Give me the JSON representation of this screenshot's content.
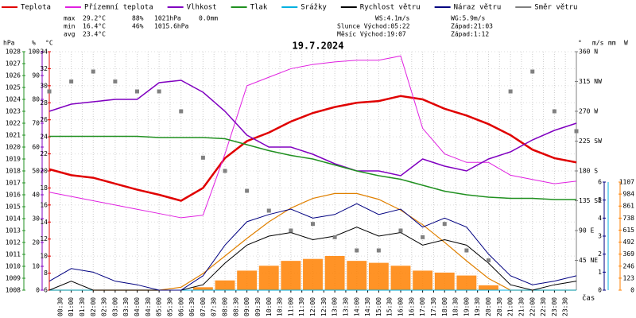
{
  "chart_data": {
    "type": "line",
    "title": "19.7.2024",
    "x_label": "čas",
    "x": [
      0,
      1,
      2,
      3,
      4,
      5,
      6,
      7,
      8,
      9,
      10,
      11,
      12,
      13,
      14,
      15,
      16,
      17,
      18,
      19,
      20,
      21,
      22,
      23,
      24
    ],
    "xlim": [
      0,
      24
    ],
    "xticks": [
      {
        "value": 0.5,
        "label": "00:30"
      },
      {
        "value": 1,
        "label": "01:00"
      },
      {
        "value": 1.5,
        "label": "01:30"
      },
      {
        "value": 2,
        "label": "02:00"
      },
      {
        "value": 2.5,
        "label": "02:30"
      },
      {
        "value": 3,
        "label": "03:00"
      },
      {
        "value": 3.5,
        "label": "03:30"
      },
      {
        "value": 4,
        "label": "04:00"
      },
      {
        "value": 4.5,
        "label": "04:30"
      },
      {
        "value": 5,
        "label": "05:00"
      },
      {
        "value": 5.5,
        "label": "05:30"
      },
      {
        "value": 6,
        "label": "06:00"
      },
      {
        "value": 6.5,
        "label": "06:30"
      },
      {
        "value": 7,
        "label": "07:00"
      },
      {
        "value": 7.5,
        "label": "07:30"
      },
      {
        "value": 8,
        "label": "08:00"
      },
      {
        "value": 8.5,
        "label": "08:30"
      },
      {
        "value": 9,
        "label": "09:00"
      },
      {
        "value": 9.5,
        "label": "09:30"
      },
      {
        "value": 10,
        "label": "10:00"
      },
      {
        "value": 10.5,
        "label": "10:30"
      },
      {
        "value": 11,
        "label": "11:00"
      },
      {
        "value": 11.5,
        "label": "11:30"
      },
      {
        "value": 12,
        "label": "12:00"
      },
      {
        "value": 12.5,
        "label": "12:30"
      },
      {
        "value": 13,
        "label": "13:00"
      },
      {
        "value": 13.5,
        "label": "13:30"
      },
      {
        "value": 14,
        "label": "14:00"
      },
      {
        "value": 14.5,
        "label": "14:30"
      },
      {
        "value": 15,
        "label": "15:00"
      },
      {
        "value": 15.5,
        "label": "15:30"
      },
      {
        "value": 16,
        "label": "16:00"
      },
      {
        "value": 16.5,
        "label": "16:30"
      },
      {
        "value": 17,
        "label": "17:00"
      },
      {
        "value": 17.5,
        "label": "17:30"
      },
      {
        "value": 18,
        "label": "18:00"
      },
      {
        "value": 18.5,
        "label": "18:30"
      },
      {
        "value": 19,
        "label": "19:00"
      },
      {
        "value": 19.5,
        "label": "19:30"
      },
      {
        "value": 20,
        "label": "20:00"
      },
      {
        "value": 20.5,
        "label": "20:30"
      },
      {
        "value": 21,
        "label": "21:00"
      },
      {
        "value": 21.5,
        "label": "21:30"
      },
      {
        "value": 22,
        "label": "22:00"
      },
      {
        "value": 22.5,
        "label": "22:30"
      },
      {
        "value": 23,
        "label": "23:00"
      },
      {
        "value": 23.5,
        "label": "23:30"
      }
    ],
    "grid": true,
    "axes": {
      "pressure": {
        "label": "hPa",
        "color": "#209020",
        "ylim": [
          1008,
          1028
        ],
        "yticks": [
          1008,
          1009,
          1010,
          1011,
          1012,
          1013,
          1014,
          1015,
          1016,
          1017,
          1018,
          1019,
          1020,
          1021,
          1022,
          1023,
          1024,
          1025,
          1026,
          1027,
          1028
        ]
      },
      "humidity": {
        "label": "%",
        "color": "#8000c0",
        "ylim": [
          0,
          100
        ],
        "yticks": [
          0,
          10,
          20,
          30,
          40,
          50,
          60,
          70,
          80,
          90,
          100
        ]
      },
      "temp": {
        "label": "°C",
        "color": "#e00000",
        "ylim": [
          6,
          34
        ],
        "yticks": [
          6,
          8,
          10,
          12,
          14,
          16,
          18,
          20,
          22,
          24,
          26,
          28,
          30,
          32,
          34
        ]
      },
      "direction": {
        "label": "°",
        "color": "#808080",
        "ylim": [
          0,
          360
        ],
        "yticks": [
          {
            "value": 45,
            "label": "45 NE"
          },
          {
            "value": 90,
            "label": "90 E"
          },
          {
            "value": 135,
            "label": "135 SE"
          },
          {
            "value": 180,
            "label": "180 S"
          },
          {
            "value": 225,
            "label": "225 SW"
          },
          {
            "value": 270,
            "label": "270 W"
          },
          {
            "value": 315,
            "label": "315 NW"
          },
          {
            "value": 360,
            "label": "360 N"
          }
        ]
      },
      "wind": {
        "label": "m/s",
        "color": "#000080",
        "ylim": [
          0,
          6
        ],
        "yticks": [
          0,
          1,
          2,
          3,
          4,
          5,
          6
        ]
      },
      "rain": {
        "label": "mm",
        "color": "#00b0e0",
        "ylim": [
          0,
          1
        ],
        "yticks": []
      },
      "radiation": {
        "label": "W",
        "color": "#ff8000",
        "ylim": [
          0,
          1107
        ],
        "yticks": [
          0,
          123,
          246,
          369,
          492,
          615,
          738,
          861,
          984,
          1107
        ]
      }
    },
    "radiation": {
      "color": "#ff8000",
      "values": [
        0,
        0,
        0,
        0,
        0,
        0,
        0,
        30,
        100,
        200,
        250,
        300,
        320,
        350,
        300,
        280,
        250,
        200,
        180,
        150,
        50,
        0,
        0,
        0,
        0
      ]
    },
    "clear_sky": {
      "color": "#e08000",
      "values": [
        0,
        0,
        0,
        0,
        0,
        0,
        30,
        170,
        350,
        530,
        700,
        840,
        940,
        990,
        990,
        930,
        820,
        670,
        490,
        300,
        120,
        0,
        0,
        0,
        0
      ]
    },
    "series": [
      {
        "name": "Teplota",
        "color": "#e00000",
        "axis": "temp",
        "values": [
          20.2,
          19.5,
          19.2,
          18.5,
          17.8,
          17.2,
          16.5,
          18,
          21.5,
          23.5,
          24.5,
          25.8,
          26.8,
          27.5,
          28,
          28.2,
          28.8,
          28.4,
          27.3,
          26.5,
          25.5,
          24.2,
          22.5,
          21.5,
          21
        ]
      },
      {
        "name": "Přízemní teplota",
        "color": "#e020e0",
        "axis": "temp",
        "values": [
          17.5,
          17,
          16.5,
          16,
          15.5,
          15,
          14.5,
          14.8,
          22,
          30,
          31,
          32,
          32.5,
          32.8,
          33,
          33,
          33.5,
          25,
          22,
          21,
          21,
          19.5,
          19,
          18.5,
          18.8
        ]
      },
      {
        "name": "Vlhkost",
        "color": "#8000c0",
        "axis": "humidity",
        "values": [
          75,
          78,
          79,
          80,
          80,
          87,
          88,
          83,
          75,
          65,
          60,
          60,
          57,
          53,
          50,
          50,
          48,
          55,
          52,
          50,
          55,
          58,
          63,
          67,
          70
        ]
      },
      {
        "name": "Tlak",
        "color": "#209020",
        "axis": "pressure",
        "values": [
          1020.9,
          1020.9,
          1020.9,
          1020.9,
          1020.9,
          1020.8,
          1020.8,
          1020.8,
          1020.7,
          1020.2,
          1019.7,
          1019.3,
          1019,
          1018.5,
          1018,
          1017.6,
          1017.3,
          1016.8,
          1016.3,
          1016,
          1015.8,
          1015.7,
          1015.7,
          1015.6,
          1015.6
        ]
      },
      {
        "name": "Srážky",
        "color": "#00b0e0",
        "axis": "rain",
        "values": [
          0,
          0,
          0,
          0,
          0,
          0,
          0,
          0,
          0,
          0,
          0,
          0,
          0,
          0,
          0,
          0,
          0,
          0,
          0,
          0,
          0,
          0,
          0,
          0,
          0
        ]
      },
      {
        "name": "Rychlost větru",
        "color": "#000000",
        "axis": "wind",
        "values": [
          0,
          0.5,
          0,
          0,
          0,
          0,
          0,
          0.3,
          1.5,
          2.5,
          3,
          3.2,
          2.8,
          3,
          3.5,
          3,
          3.2,
          2.5,
          2.8,
          2.5,
          1.5,
          0.3,
          0,
          0.3,
          0.5
        ]
      },
      {
        "name": "Náraz větru",
        "color": "#000080",
        "axis": "wind",
        "values": [
          0.5,
          1.2,
          1,
          0.5,
          0.3,
          0,
          0,
          0.8,
          2.5,
          3.8,
          4.2,
          4.5,
          4,
          4.2,
          4.8,
          4.2,
          4.5,
          3.5,
          4,
          3.5,
          2,
          0.8,
          0.3,
          0.5,
          0.8
        ]
      },
      {
        "name": "Směr větru",
        "color": "#808080",
        "axis": "direction",
        "type": "scatter",
        "values": [
          300,
          315,
          330,
          315,
          300,
          300,
          270,
          200,
          180,
          150,
          120,
          90,
          100,
          80,
          60,
          60,
          90,
          80,
          100,
          60,
          45,
          300,
          330,
          270,
          240
        ]
      }
    ],
    "stats": [
      [
        "max",
        "29.2°C",
        "88%",
        "1021hPa",
        "0.0mm"
      ],
      [
        "min",
        "16.4°C",
        "46%",
        "1015.6hPa"
      ],
      [
        "avg",
        "23.4°C"
      ]
    ],
    "info": [
      [
        "WS:4.1m/s",
        "WG:5.9m/s"
      ],
      [
        "Slunce Východ:05:22",
        "Západ:21:03"
      ],
      [
        "Měsíc  Východ:19:07",
        "Západ:1:12"
      ]
    ]
  }
}
